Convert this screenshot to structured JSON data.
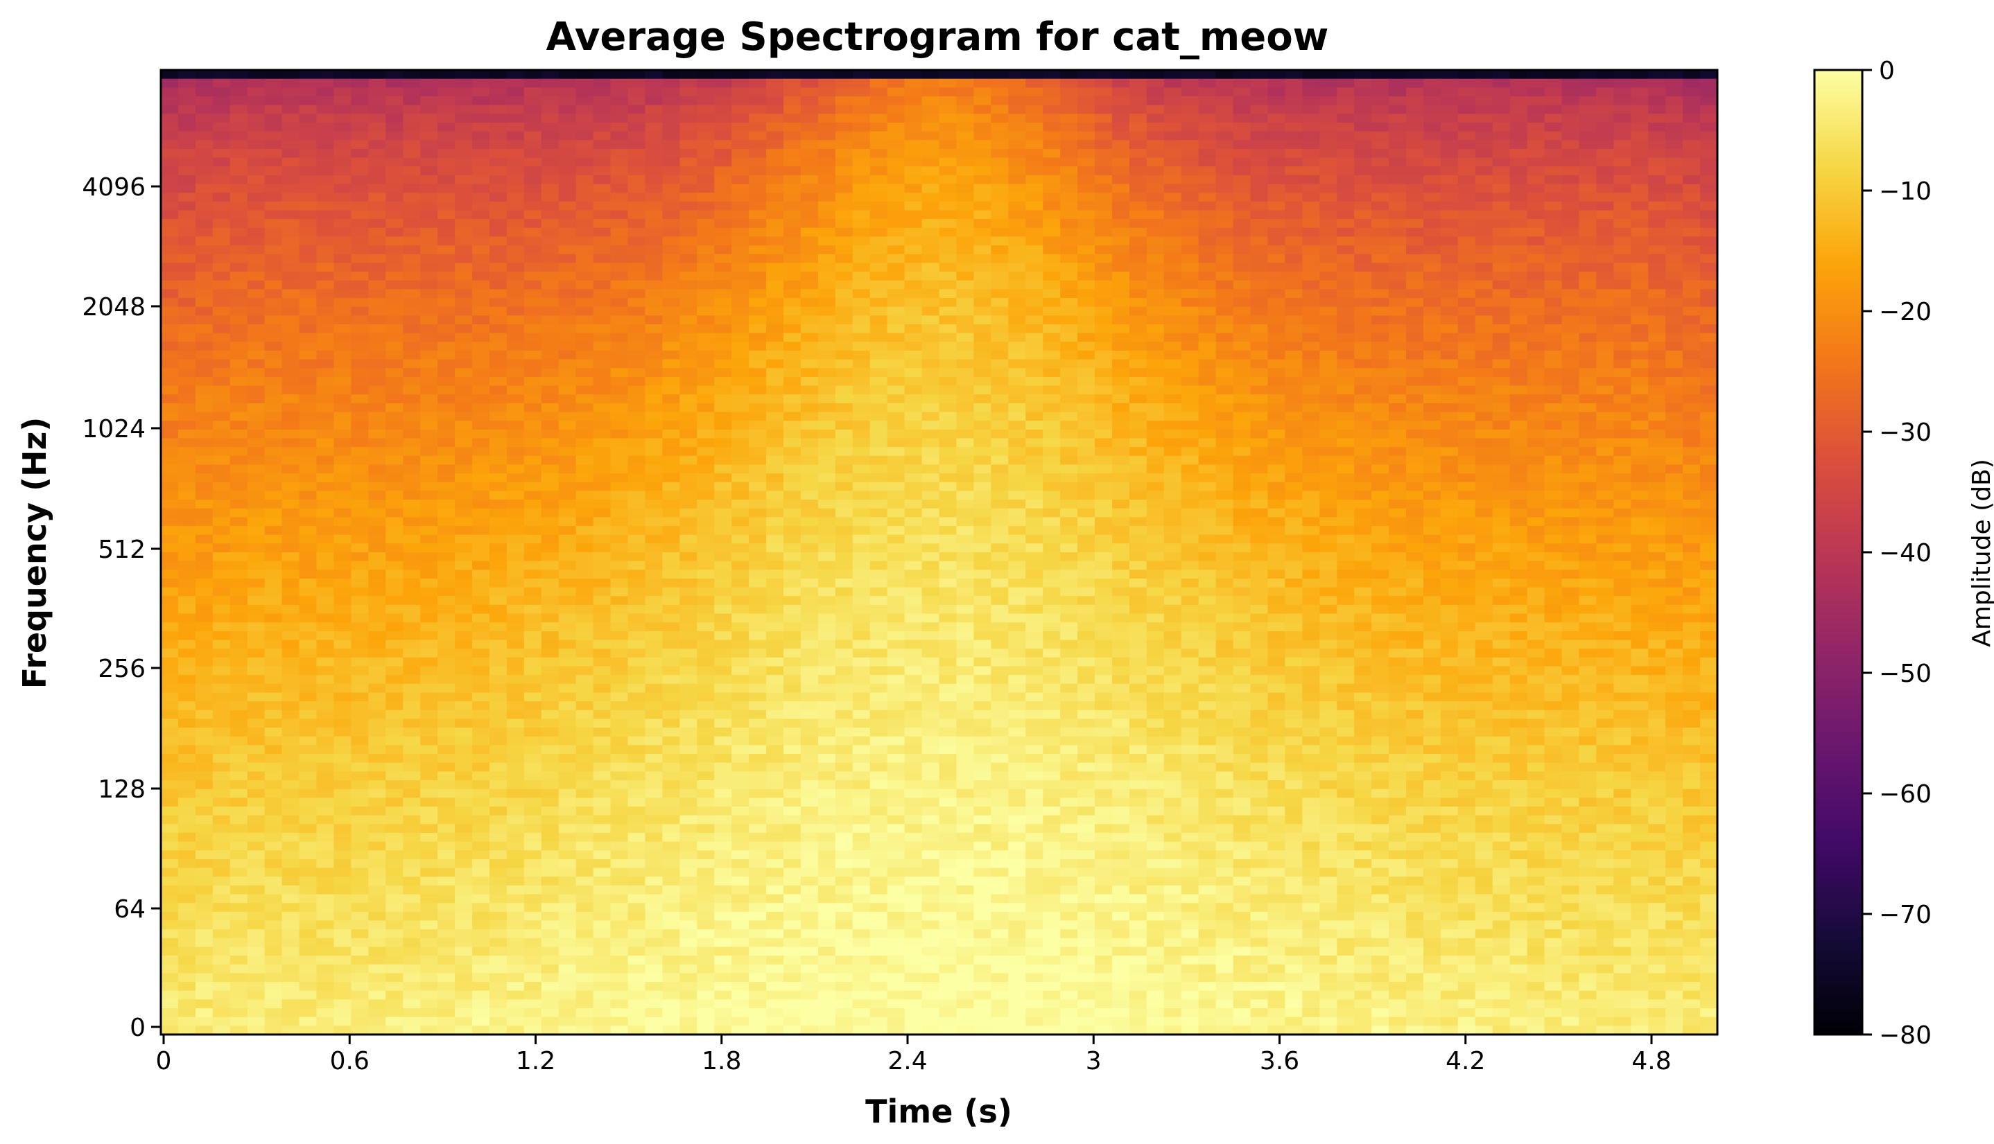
{
  "chart_data": {
    "type": "heatmap",
    "title": "Average Spectrogram for cat_meow",
    "xlabel": "Time (s)",
    "ylabel": "Frequency (Hz)",
    "xlim": [
      0,
      5.0
    ],
    "x_ticks": [
      "0",
      "0.6",
      "1.2",
      "1.8",
      "2.4",
      "3",
      "3.6",
      "4.2",
      "4.8"
    ],
    "y_scale": "symlog (base 2)",
    "y_ticks": [
      "0",
      "64",
      "128",
      "256",
      "512",
      "1024",
      "2048",
      "4096"
    ],
    "colormap": "inferno",
    "colorbar": {
      "label": "Amplitude (dB)",
      "range": [
        -80,
        0
      ],
      "ticks": [
        "0",
        "−10",
        "−20",
        "−30",
        "−40",
        "−50",
        "−60",
        "−70",
        "−80"
      ]
    },
    "description_of_values": {
      "time_peak_s": 2.5,
      "low_freq_level_db": -4,
      "high_freq_level_db": -45,
      "top_edge_level_db": -75
    },
    "grid": false,
    "legend": "none"
  }
}
